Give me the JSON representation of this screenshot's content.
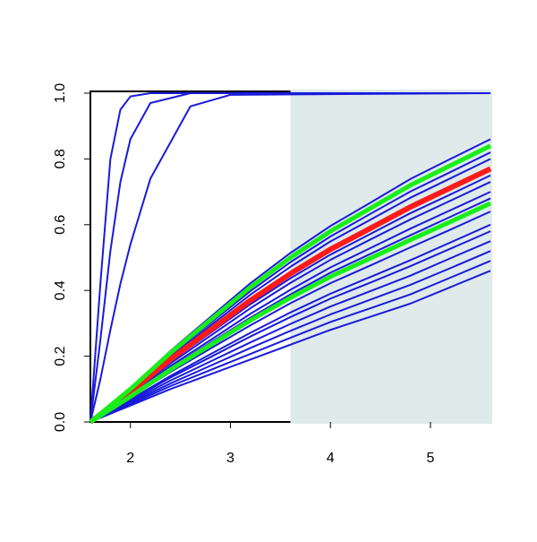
{
  "chart_data": {
    "type": "line",
    "x": [
      1.6,
      2.0,
      2.4,
      2.8,
      3.2,
      3.6,
      4.0,
      4.4,
      4.8,
      5.2,
      5.6
    ],
    "xlim": [
      1.6,
      5.6
    ],
    "ylim": [
      0,
      1
    ],
    "xticks": [
      2,
      3,
      4,
      5
    ],
    "yticks": [
      {
        "value": 0,
        "label": "0.0"
      },
      0.2,
      0.4,
      0.6,
      0.8,
      {
        "value": 1,
        "label": "1.0"
      }
    ],
    "shaded_region": {
      "x": [
        3.6,
        5.6
      ],
      "color": "#dfeaea"
    },
    "series": [
      {
        "color": "#1a1adb",
        "x": [
          1.6,
          1.7,
          1.8,
          1.9,
          2.0,
          2.2,
          2.6,
          3.0,
          5.6
        ],
        "values": [
          0,
          0.42,
          0.8,
          0.95,
          0.99,
          1,
          1,
          1,
          1
        ]
      },
      {
        "color": "#1a1adb",
        "x": [
          1.6,
          1.7,
          1.8,
          1.9,
          2.0,
          2.2,
          2.6,
          3.0,
          5.6
        ],
        "values": [
          0,
          0.25,
          0.52,
          0.73,
          0.86,
          0.97,
          1,
          1,
          1
        ]
      },
      {
        "color": "#1a1adb",
        "x": [
          1.6,
          1.7,
          1.8,
          1.9,
          2.0,
          2.2,
          2.6,
          3.0,
          5.6
        ],
        "values": [
          0,
          0.13,
          0.28,
          0.42,
          0.54,
          0.74,
          0.96,
          0.995,
          1
        ]
      },
      {
        "color": "#1a1adb",
        "values": [
          0,
          0.103,
          0.216,
          0.319,
          0.422,
          0.514,
          0.596,
          0.667,
          0.739,
          0.8,
          0.86
        ]
      },
      {
        "color": "#1a1adb",
        "values": [
          0,
          0.097,
          0.204,
          0.301,
          0.398,
          0.486,
          0.564,
          0.633,
          0.701,
          0.76,
          0.82
        ]
      },
      {
        "color": "#1a1adb",
        "values": [
          0,
          0.095,
          0.198,
          0.293,
          0.387,
          0.472,
          0.549,
          0.615,
          0.682,
          0.741,
          0.8
        ]
      },
      {
        "color": "#1a1adb",
        "values": [
          0,
          0.088,
          0.184,
          0.271,
          0.358,
          0.437,
          0.509,
          0.572,
          0.635,
          0.692,
          0.75
        ]
      },
      {
        "color": "#1a1adb",
        "values": [
          0,
          0.086,
          0.178,
          0.262,
          0.346,
          0.423,
          0.493,
          0.555,
          0.616,
          0.673,
          0.73
        ]
      },
      {
        "color": "#1a1adb",
        "values": [
          0,
          0.082,
          0.17,
          0.249,
          0.329,
          0.402,
          0.47,
          0.529,
          0.588,
          0.644,
          0.7
        ]
      },
      {
        "color": "#1a1adb",
        "values": [
          0,
          0.079,
          0.164,
          0.241,
          0.317,
          0.388,
          0.454,
          0.511,
          0.568,
          0.624,
          0.68
        ]
      },
      {
        "color": "#1a1adb",
        "values": [
          0,
          0.074,
          0.152,
          0.223,
          0.294,
          0.361,
          0.422,
          0.476,
          0.531,
          0.585,
          0.64
        ]
      },
      {
        "color": "#1a1adb",
        "values": [
          0,
          0.068,
          0.14,
          0.206,
          0.271,
          0.333,
          0.39,
          0.441,
          0.492,
          0.546,
          0.6
        ]
      },
      {
        "color": "#1a1adb",
        "values": [
          0,
          0.066,
          0.135,
          0.197,
          0.26,
          0.319,
          0.375,
          0.424,
          0.474,
          0.527,
          0.58
        ]
      },
      {
        "color": "#1a1adb",
        "values": [
          0,
          0.062,
          0.126,
          0.184,
          0.242,
          0.298,
          0.351,
          0.398,
          0.445,
          0.498,
          0.55
        ]
      },
      {
        "color": "#1a1adb",
        "values": [
          0,
          0.058,
          0.117,
          0.171,
          0.225,
          0.277,
          0.327,
          0.372,
          0.417,
          0.468,
          0.52
        ]
      },
      {
        "color": "#1a1adb",
        "values": [
          0,
          0.054,
          0.109,
          0.158,
          0.207,
          0.256,
          0.304,
          0.346,
          0.388,
          0.439,
          0.49
        ]
      },
      {
        "color": "#1a1adb",
        "values": [
          0,
          0.05,
          0.1,
          0.145,
          0.19,
          0.235,
          0.28,
          0.32,
          0.36,
          0.41,
          0.46
        ]
      },
      {
        "color": "#ff1a1a",
        "width": 6,
        "values": [
          0,
          0.091,
          0.19,
          0.28,
          0.37,
          0.451,
          0.525,
          0.589,
          0.654,
          0.712,
          0.77
        ]
      },
      {
        "color": "#1aee1a",
        "width": 5,
        "values": [
          0,
          0.1,
          0.21,
          0.31,
          0.41,
          0.5,
          0.58,
          0.65,
          0.72,
          0.78,
          0.84
        ]
      },
      {
        "color": "#1aee1a",
        "width": 5,
        "values": [
          0,
          0.077,
          0.159,
          0.234,
          0.309,
          0.378,
          0.442,
          0.498,
          0.554,
          0.609,
          0.665
        ]
      }
    ]
  }
}
